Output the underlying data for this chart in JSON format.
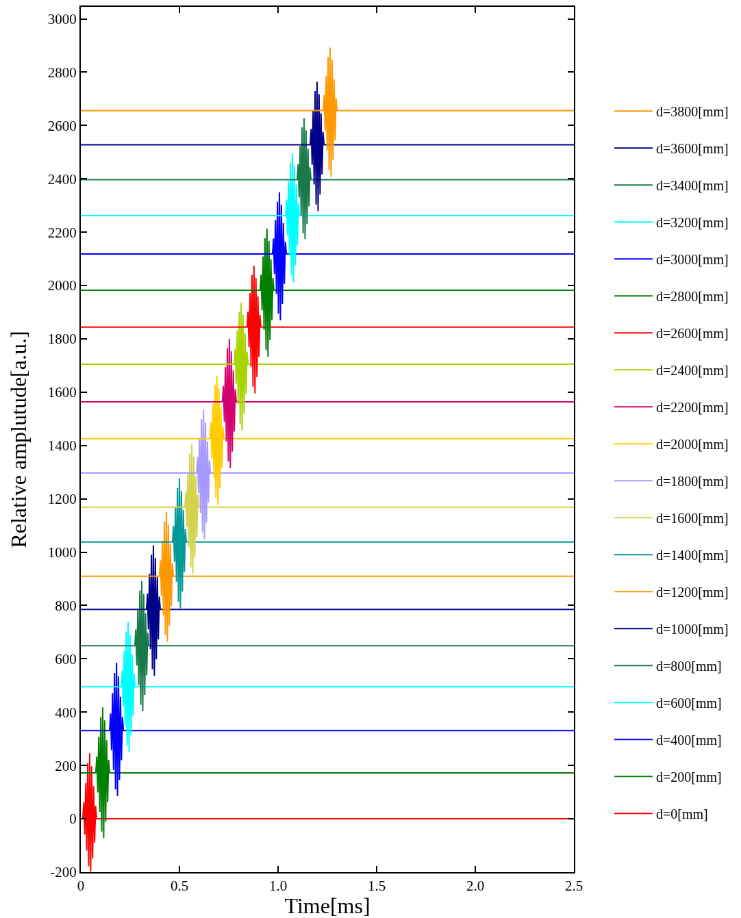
{
  "chart_data": {
    "type": "line",
    "xlabel": "Time[ms]",
    "ylabel": "Relative amplutude[a.u.]",
    "xlim": [
      0,
      2.5
    ],
    "xticks": [
      0,
      0.5,
      {
        "value": 1,
        "label": "1.0"
      },
      1.5,
      {
        "value": 2,
        "label": "2.0"
      },
      2.5
    ],
    "ylim": [
      -200,
      3045
    ],
    "yticks": [
      -200,
      0,
      200,
      400,
      600,
      800,
      1000,
      1200,
      1400,
      1600,
      1800,
      2000,
      2200,
      2400,
      2600,
      2800,
      3000
    ],
    "legend": "right",
    "series": [
      {
        "name": "d=0[mm]",
        "color": "#ff0000",
        "x": [
          0,
          0.01,
          0.015,
          0.02,
          0.025,
          0.03,
          0.035,
          0.04,
          0.045,
          0.05,
          0.055,
          0.06,
          0.065,
          0.07,
          0.075,
          0.08,
          2.5
        ],
        "values": [
          0,
          0,
          62,
          -59,
          135,
          -119,
          209,
          -178,
          246,
          -198,
          197,
          -149,
          123,
          -89,
          49,
          0,
          0
        ]
      },
      {
        "name": "d=200[mm]",
        "color": "#008000",
        "x": [
          0,
          0.076,
          0.081,
          0.086,
          0.091,
          0.096,
          0.101,
          0.106,
          0.111,
          0.116,
          0.121,
          0.126,
          0.131,
          0.136,
          0.141,
          0.146,
          2.5
        ],
        "values": [
          172,
          172,
          234,
          99,
          307,
          26,
          381,
          -48,
          418,
          -72,
          369,
          -11,
          295,
          62,
          221,
          172,
          172
        ]
      },
      {
        "name": "d=400[mm]",
        "color": "#0000ff",
        "x": [
          0,
          0.146,
          0.151,
          0.156,
          0.161,
          0.166,
          0.171,
          0.176,
          0.181,
          0.186,
          0.191,
          0.196,
          0.201,
          0.206,
          0.211,
          0.216,
          2.5
        ],
        "values": [
          331,
          331,
          395,
          257,
          471,
          183,
          547,
          110,
          585,
          85,
          534,
          146,
          458,
          220,
          382,
          331,
          331
        ]
      },
      {
        "name": "d=600[mm]",
        "color": "#00ffff",
        "x": [
          0,
          0.205,
          0.21,
          0.215,
          0.22,
          0.225,
          0.23,
          0.235,
          0.24,
          0.245,
          0.25,
          0.255,
          0.26,
          0.265,
          0.27,
          0.275,
          2.5
        ],
        "values": [
          495,
          495,
          556,
          422,
          629,
          349,
          702,
          275,
          738,
          251,
          689,
          312,
          617,
          385,
          544,
          495,
          495
        ]
      },
      {
        "name": "d=800[mm]",
        "color": "#187a48",
        "x": [
          0,
          0.274,
          0.279,
          0.284,
          0.289,
          0.294,
          0.299,
          0.304,
          0.309,
          0.314,
          0.319,
          0.324,
          0.329,
          0.334,
          0.339,
          0.344,
          2.5
        ],
        "values": [
          649,
          649,
          710,
          575,
          783,
          501,
          856,
          428,
          892,
          403,
          843,
          464,
          771,
          538,
          698,
          649,
          649
        ]
      },
      {
        "name": "d=1000[mm]",
        "color": "#00008b",
        "x": [
          0,
          0.333,
          0.338,
          0.343,
          0.348,
          0.353,
          0.358,
          0.363,
          0.368,
          0.373,
          0.378,
          0.383,
          0.388,
          0.393,
          0.398,
          0.403,
          2.5
        ],
        "values": [
          785,
          785,
          845,
          710,
          918,
          636,
          990,
          561,
          1026,
          536,
          978,
          598,
          906,
          673,
          833,
          785,
          785
        ]
      },
      {
        "name": "d=1200[mm]",
        "color": "#ff9900",
        "x": [
          0,
          0.399,
          0.404,
          0.409,
          0.414,
          0.419,
          0.424,
          0.429,
          0.434,
          0.439,
          0.444,
          0.449,
          0.454,
          0.459,
          0.464,
          0.469,
          2.5
        ],
        "values": [
          910,
          910,
          970,
          836,
          1043,
          762,
          1115,
          689,
          1151,
          664,
          1103,
          725,
          1031,
          799,
          958,
          910,
          910
        ]
      },
      {
        "name": "d=1400[mm]",
        "color": "#009999",
        "x": [
          0,
          0.465,
          0.47,
          0.475,
          0.48,
          0.485,
          0.49,
          0.495,
          0.5,
          0.505,
          0.51,
          0.515,
          0.52,
          0.525,
          0.53,
          0.535,
          2.5
        ],
        "values": [
          1038,
          1038,
          1098,
          964,
          1169,
          889,
          1241,
          815,
          1277,
          790,
          1229,
          852,
          1158,
          926,
          1086,
          1038,
          1038
        ]
      },
      {
        "name": "d=1600[mm]",
        "color": "#d4d44c",
        "x": [
          0,
          0.528,
          0.533,
          0.538,
          0.543,
          0.548,
          0.553,
          0.558,
          0.563,
          0.568,
          0.573,
          0.578,
          0.583,
          0.588,
          0.593,
          0.598,
          2.5
        ],
        "values": [
          1169,
          1169,
          1228,
          1094,
          1299,
          1018,
          1370,
          943,
          1405,
          918,
          1358,
          981,
          1287,
          1056,
          1216,
          1169,
          1169
        ]
      },
      {
        "name": "d=1800[mm]",
        "color": "#a899ff",
        "x": [
          0,
          0.587,
          0.592,
          0.597,
          0.602,
          0.607,
          0.612,
          0.617,
          0.622,
          0.627,
          0.632,
          0.637,
          0.642,
          0.647,
          0.652,
          0.657,
          2.5
        ],
        "values": [
          1297,
          1297,
          1356,
          1223,
          1427,
          1148,
          1498,
          1074,
          1533,
          1049,
          1486,
          1111,
          1415,
          1185,
          1344,
          1297,
          1297
        ]
      },
      {
        "name": "d=2000[mm]",
        "color": "#ffcc00",
        "x": [
          0,
          0.655,
          0.66,
          0.665,
          0.67,
          0.675,
          0.68,
          0.685,
          0.69,
          0.695,
          0.7,
          0.705,
          0.71,
          0.715,
          0.72,
          0.725,
          2.5
        ],
        "values": [
          1426,
          1426,
          1485,
          1351,
          1556,
          1277,
          1627,
          1202,
          1662,
          1177,
          1615,
          1239,
          1544,
          1314,
          1473,
          1426,
          1426
        ]
      },
      {
        "name": "d=2200[mm]",
        "color": "#d4006f",
        "x": [
          0,
          0.718,
          0.723,
          0.728,
          0.733,
          0.738,
          0.743,
          0.748,
          0.753,
          0.758,
          0.763,
          0.768,
          0.773,
          0.778,
          0.783,
          0.788,
          2.5
        ],
        "values": [
          1564,
          1564,
          1623,
          1489,
          1694,
          1415,
          1765,
          1340,
          1800,
          1315,
          1753,
          1377,
          1682,
          1452,
          1611,
          1564,
          1564
        ]
      },
      {
        "name": "d=2400[mm]",
        "color": "#aad400",
        "x": [
          0,
          0.778,
          0.783,
          0.788,
          0.793,
          0.798,
          0.803,
          0.808,
          0.813,
          0.818,
          0.823,
          0.828,
          0.833,
          0.838,
          0.843,
          0.848,
          2.5
        ],
        "values": [
          1705,
          1705,
          1763,
          1630,
          1832,
          1556,
          1901,
          1481,
          1936,
          1456,
          1890,
          1518,
          1821,
          1593,
          1751,
          1705,
          1705
        ]
      },
      {
        "name": "d=2600[mm]",
        "color": "#ff0000",
        "x": [
          0,
          0.843,
          0.848,
          0.853,
          0.858,
          0.863,
          0.868,
          0.873,
          0.878,
          0.883,
          0.888,
          0.893,
          0.898,
          0.903,
          0.908,
          0.913,
          2.5
        ],
        "values": [
          1844,
          1844,
          1902,
          1769,
          1971,
          1695,
          2040,
          1620,
          2074,
          1595,
          2028,
          1657,
          1959,
          1732,
          1890,
          1844,
          1844
        ]
      },
      {
        "name": "d=2800[mm]",
        "color": "#008000",
        "x": [
          0,
          0.909,
          0.914,
          0.919,
          0.924,
          0.929,
          0.934,
          0.939,
          0.944,
          0.949,
          0.954,
          0.959,
          0.964,
          0.969,
          0.974,
          0.979,
          2.5
        ],
        "values": [
          1982,
          1982,
          2040,
          1907,
          2109,
          1833,
          2178,
          1758,
          2213,
          1733,
          2167,
          1795,
          2098,
          1870,
          2028,
          1982,
          1982
        ]
      },
      {
        "name": "d=3000[mm]",
        "color": "#0000ff",
        "x": [
          0,
          0.972,
          0.977,
          0.982,
          0.987,
          0.992,
          0.997,
          1.002,
          1.007,
          1.012,
          1.017,
          1.022,
          1.027,
          1.032,
          1.037,
          1.042,
          2.5
        ],
        "values": [
          2118,
          2118,
          2176,
          2043,
          2245,
          1969,
          2314,
          1894,
          2349,
          1869,
          2303,
          1931,
          2234,
          2006,
          2164,
          2118,
          2118
        ]
      },
      {
        "name": "d=3200[mm]",
        "color": "#00ffff",
        "x": [
          0,
          1.038,
          1.043,
          1.048,
          1.053,
          1.058,
          1.063,
          1.068,
          1.073,
          1.078,
          1.083,
          1.088,
          1.093,
          1.098,
          1.103,
          1.108,
          2.5
        ],
        "values": [
          2262,
          2262,
          2320,
          2187,
          2390,
          2113,
          2460,
          2038,
          2495,
          2013,
          2448,
          2075,
          2379,
          2150,
          2309,
          2262,
          2262
        ]
      },
      {
        "name": "d=3400[mm]",
        "color": "#187a48",
        "x": [
          0,
          1.097,
          1.102,
          1.107,
          1.112,
          1.117,
          1.122,
          1.127,
          1.132,
          1.137,
          1.142,
          1.147,
          1.152,
          1.157,
          1.162,
          1.167,
          2.5
        ],
        "values": [
          2397,
          2397,
          2455,
          2330,
          2524,
          2263,
          2593,
          2196,
          2628,
          2174,
          2582,
          2230,
          2513,
          2297,
          2443,
          2397,
          2397
        ]
      },
      {
        "name": "d=3600[mm]",
        "color": "#000088",
        "x": [
          0,
          1.163,
          1.168,
          1.173,
          1.178,
          1.183,
          1.188,
          1.193,
          1.198,
          1.203,
          1.208,
          1.213,
          1.218,
          1.223,
          1.228,
          1.233,
          2.5
        ],
        "values": [
          2528,
          2528,
          2587,
          2453,
          2658,
          2379,
          2729,
          2304,
          2764,
          2279,
          2717,
          2341,
          2646,
          2416,
          2575,
          2528,
          2528
        ]
      },
      {
        "name": "d=3800[mm]",
        "color": "#ff9900",
        "x": [
          0,
          1.229,
          1.234,
          1.239,
          1.244,
          1.249,
          1.254,
          1.259,
          1.264,
          1.269,
          1.274,
          1.279,
          1.284,
          1.289,
          1.294,
          1.299,
          2.5
        ],
        "values": [
          2656,
          2656,
          2715,
          2582,
          2786,
          2507,
          2857,
          2433,
          2892,
          2408,
          2845,
          2470,
          2774,
          2544,
          2703,
          2656,
          2656
        ]
      }
    ]
  }
}
